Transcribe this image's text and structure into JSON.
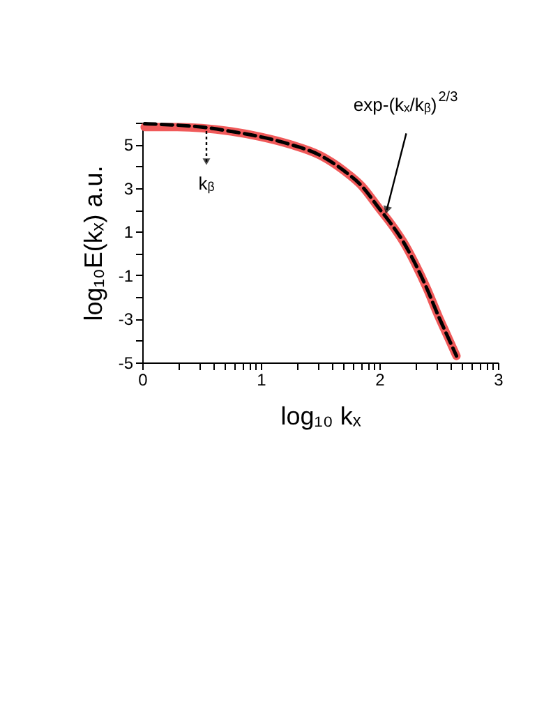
{
  "chart_data": {
    "type": "line",
    "xlabel": "log₁₀ kₓ",
    "ylabel": "log₁₀E(kₓ)   a.u.",
    "x": [
      0.02,
      0.25,
      0.5,
      0.75,
      1.0,
      1.25,
      1.5,
      1.7,
      1.85,
      2.0,
      2.1,
      2.2,
      2.3,
      2.4,
      2.5,
      2.55,
      2.6,
      2.65
    ],
    "series": [
      {
        "color": "#f05a5a",
        "line_style": "solid",
        "values": [
          5.8,
          5.8,
          5.75,
          5.6,
          5.35,
          5.0,
          4.5,
          3.8,
          3.1,
          2.05,
          1.35,
          0.55,
          -0.45,
          -1.6,
          -2.9,
          -3.5,
          -4.1,
          -4.7
        ]
      },
      {
        "color": "#000000",
        "line_style": "dashed",
        "values": [
          5.95,
          5.9,
          5.8,
          5.6,
          5.35,
          5.0,
          4.5,
          3.8,
          3.1,
          2.05,
          1.35,
          0.55,
          -0.45,
          -1.6,
          -2.9,
          -3.5,
          -4.1,
          -4.7
        ]
      }
    ],
    "xlim": [
      0,
      3
    ],
    "ylim": [
      -5,
      6
    ],
    "xticks": [
      0,
      {
        "value": 0.301,
        "label": null
      },
      {
        "value": 0.477,
        "label": null
      },
      {
        "value": 0.602,
        "label": null
      },
      {
        "value": 0.699,
        "label": null
      },
      {
        "value": 0.778,
        "label": null
      },
      {
        "value": 0.845,
        "label": null
      },
      {
        "value": 0.903,
        "label": null
      },
      {
        "value": 0.954,
        "label": null
      },
      1,
      {
        "value": 1.301,
        "label": null
      },
      {
        "value": 1.477,
        "label": null
      },
      {
        "value": 1.602,
        "label": null
      },
      {
        "value": 1.699,
        "label": null
      },
      {
        "value": 1.778,
        "label": null
      },
      {
        "value": 1.845,
        "label": null
      },
      {
        "value": 1.903,
        "label": null
      },
      {
        "value": 1.954,
        "label": null
      },
      2,
      {
        "value": 2.301,
        "label": null
      },
      {
        "value": 2.477,
        "label": null
      },
      {
        "value": 2.602,
        "label": null
      },
      {
        "value": 2.699,
        "label": null
      },
      {
        "value": 2.778,
        "label": null
      },
      {
        "value": 2.845,
        "label": null
      },
      {
        "value": 2.903,
        "label": null
      },
      {
        "value": 2.954,
        "label": null
      },
      3
    ],
    "yticks": [
      -5,
      {
        "value": -4,
        "label": null
      },
      -3,
      {
        "value": -2,
        "label": null
      },
      -1,
      {
        "value": 0,
        "label": null
      },
      1,
      {
        "value": 2,
        "label": null
      },
      3,
      {
        "value": 4,
        "label": null
      },
      5,
      {
        "value": 6,
        "label": null
      }
    ],
    "annotations": [
      "kᵦ",
      {
        "text": "exp-(kₓ/kᵦ)$^{2/3}$",
        "x": 2.05,
        "y": 1.8
      }
    ],
    "marker": "none"
  }
}
